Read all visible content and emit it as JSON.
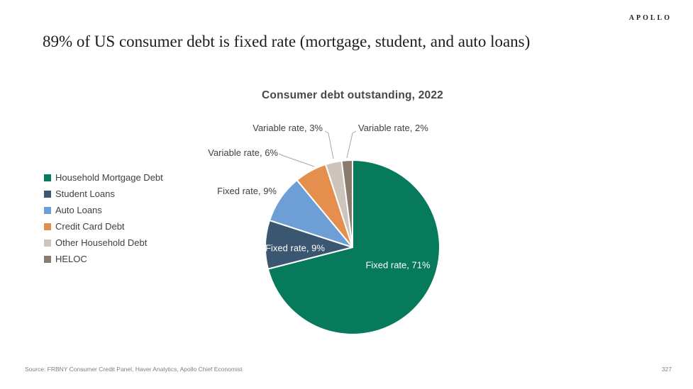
{
  "brand": {
    "logo": "APOLLO"
  },
  "slide": {
    "title": "89% of US consumer debt is fixed rate (mortgage, student, and auto loans)",
    "source": "Source: FRBNY Consumer Credit Panel, Haver Analytics, Apollo Chief Economist",
    "page_number": "327"
  },
  "chart_data": {
    "type": "pie",
    "title": "Consumer debt outstanding, 2022",
    "legend_position": "left",
    "start_angle_deg": 0,
    "clockwise": true,
    "units": "percent of consumer debt outstanding",
    "categories": [
      "Household Mortgage Debt",
      "Student Loans",
      "Auto Loans",
      "Credit Card Debt",
      "Other Household Debt",
      "HELOC"
    ],
    "values": [
      71,
      9,
      9,
      6,
      3,
      2
    ],
    "slices": [
      {
        "category": "Household Mortgage Debt",
        "rate_type": "Fixed rate",
        "value": 71,
        "label": "Fixed rate, 71%",
        "color": "#077a5b",
        "label_placement": "inside"
      },
      {
        "category": "Student Loans",
        "rate_type": "Fixed rate",
        "value": 9,
        "label": "Fixed rate, 9%",
        "color": "#3a5670",
        "label_placement": "inside"
      },
      {
        "category": "Auto Loans",
        "rate_type": "Fixed rate",
        "value": 9,
        "label": "Fixed rate, 9%",
        "color": "#6d9fd6",
        "label_placement": "outside"
      },
      {
        "category": "Credit Card Debt",
        "rate_type": "Variable rate",
        "value": 6,
        "label": "Variable rate, 6%",
        "color": "#e48f4d",
        "label_placement": "outside"
      },
      {
        "category": "Other Household Debt",
        "rate_type": "Variable rate",
        "value": 3,
        "label": "Variable rate, 3%",
        "color": "#cdc5bc",
        "label_placement": "outside"
      },
      {
        "category": "HELOC",
        "rate_type": "Variable rate",
        "value": 2,
        "label": "Variable rate, 2%",
        "color": "#897c6d",
        "label_placement": "outside"
      }
    ],
    "colors": {
      "slice_border": "#ffffff",
      "leader_line": "#a6a6a6",
      "label_text": "#404040",
      "inside_label_text": "#ffffff"
    }
  }
}
